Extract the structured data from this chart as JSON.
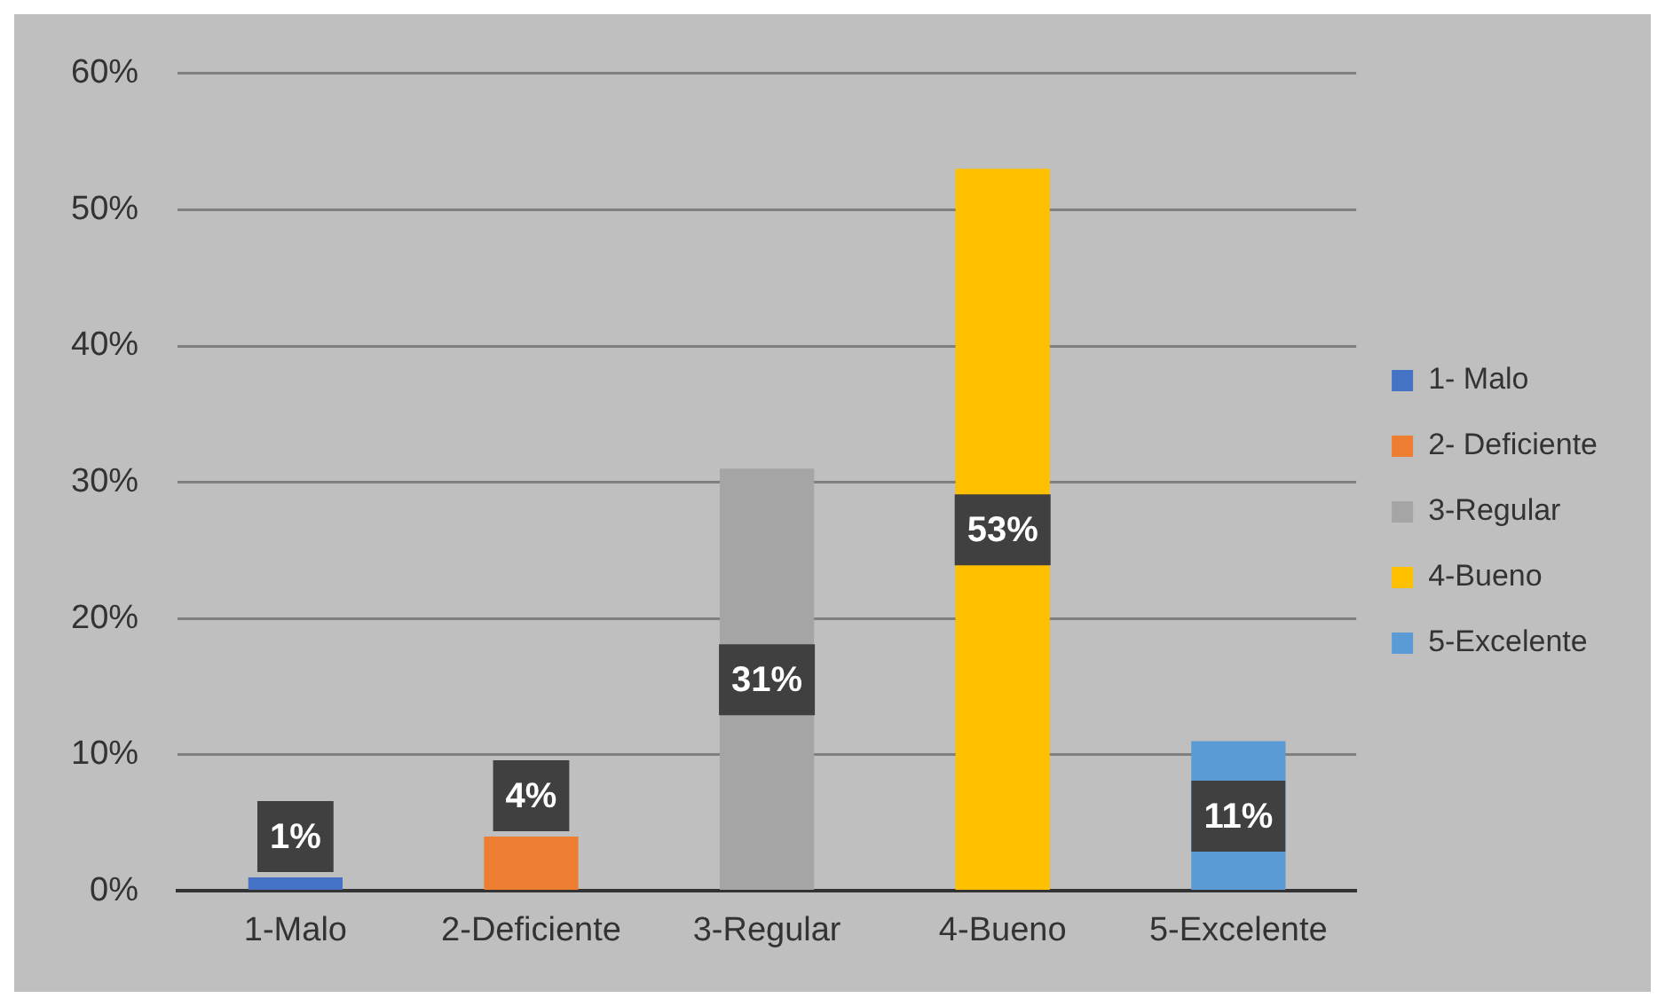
{
  "chart_data": {
    "type": "bar",
    "categories": [
      "1-Malo",
      "2-Deficiente",
      "3-Regular",
      "4-Bueno",
      "5-Excelente"
    ],
    "series": [
      {
        "name": "1- Malo",
        "color": "#4472c4",
        "values": [
          1,
          null,
          null,
          null,
          null
        ],
        "value_labels": [
          "1%",
          null,
          null,
          null,
          null
        ]
      },
      {
        "name": "2- Deficiente",
        "color": "#ed7d31",
        "values": [
          null,
          4,
          null,
          null,
          null
        ],
        "value_labels": [
          null,
          "4%",
          null,
          null,
          null
        ]
      },
      {
        "name": "3-Regular",
        "color": "#a5a5a5",
        "values": [
          null,
          null,
          31,
          null,
          null
        ],
        "value_labels": [
          null,
          null,
          "31%",
          null,
          null
        ]
      },
      {
        "name": "4-Bueno",
        "color": "#ffc000",
        "values": [
          null,
          null,
          null,
          53,
          null
        ],
        "value_labels": [
          null,
          null,
          null,
          "53%",
          null
        ]
      },
      {
        "name": "5-Excelente",
        "color": "#5b9bd5",
        "values": [
          null,
          null,
          null,
          null,
          11
        ],
        "value_labels": [
          null,
          null,
          null,
          null,
          "11%"
        ]
      }
    ],
    "ylim": [
      0,
      60
    ],
    "yticks": [
      {
        "value": 0,
        "label": "0%"
      },
      {
        "value": 10,
        "label": "10%"
      },
      {
        "value": 20,
        "label": "20%"
      },
      {
        "value": 30,
        "label": "30%"
      },
      {
        "value": 40,
        "label": "40%"
      },
      {
        "value": 50,
        "label": "50%"
      },
      {
        "value": 60,
        "label": "60%"
      }
    ],
    "grid": "y",
    "legend": "right"
  }
}
